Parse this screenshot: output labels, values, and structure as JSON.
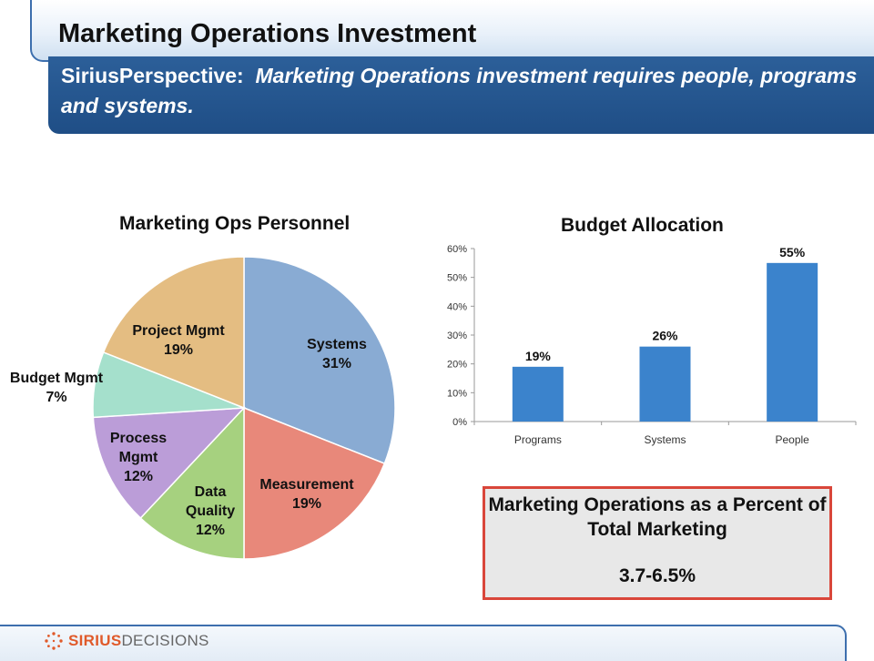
{
  "slide": {
    "title": "Marketing Operations Investment",
    "perspective_label": "SiriusPerspective:",
    "perspective_text": "Marketing Operations investment requires people, programs and systems."
  },
  "colors": {
    "title_bar_border": "#3d6fae",
    "perspective_bg": "#1f4e86",
    "box_border": "#d9463a",
    "bar_fill": "#3b83cc",
    "logo_accent": "#e05a2a"
  },
  "chart_data": [
    {
      "type": "pie",
      "title": "Marketing Ops Personnel",
      "slices": [
        {
          "label": "Systems",
          "value": 31,
          "display": "31%",
          "color": "#89abd3"
        },
        {
          "label": "Measurement",
          "value": 19,
          "display": "19%",
          "color": "#e8887a"
        },
        {
          "label": "Data Quality",
          "value": 12,
          "display": "12%",
          "color": "#a6d17f"
        },
        {
          "label": "Process Mgmt",
          "value": 12,
          "display": "12%",
          "color": "#bb9dd8"
        },
        {
          "label": "Budget Mgmt",
          "value": 7,
          "display": "7%",
          "color": "#a5e0cc"
        },
        {
          "label": "Project Mgmt",
          "value": 19,
          "display": "19%",
          "color": "#e4bd82"
        }
      ],
      "legend": "none (labels on slices)"
    },
    {
      "type": "bar",
      "title": "Budget Allocation",
      "categories": [
        "Programs",
        "Systems",
        "People"
      ],
      "values": [
        19,
        26,
        55
      ],
      "data_labels": [
        "19%",
        "26%",
        "55%"
      ],
      "ylim": [
        0,
        60
      ],
      "yticks": [
        "0%",
        "10%",
        "20%",
        "30%",
        "40%",
        "50%",
        "60%"
      ],
      "xlabel": "",
      "ylabel": "",
      "grid": false
    }
  ],
  "info_box": {
    "title": "Marketing Operations as a Percent of Total Marketing",
    "value": "3.7-6.5%"
  },
  "footer": {
    "logo_bold": "SIRIUS",
    "logo_rest": "DECISIONS",
    "logo_icon": "sirius-burst-icon"
  }
}
